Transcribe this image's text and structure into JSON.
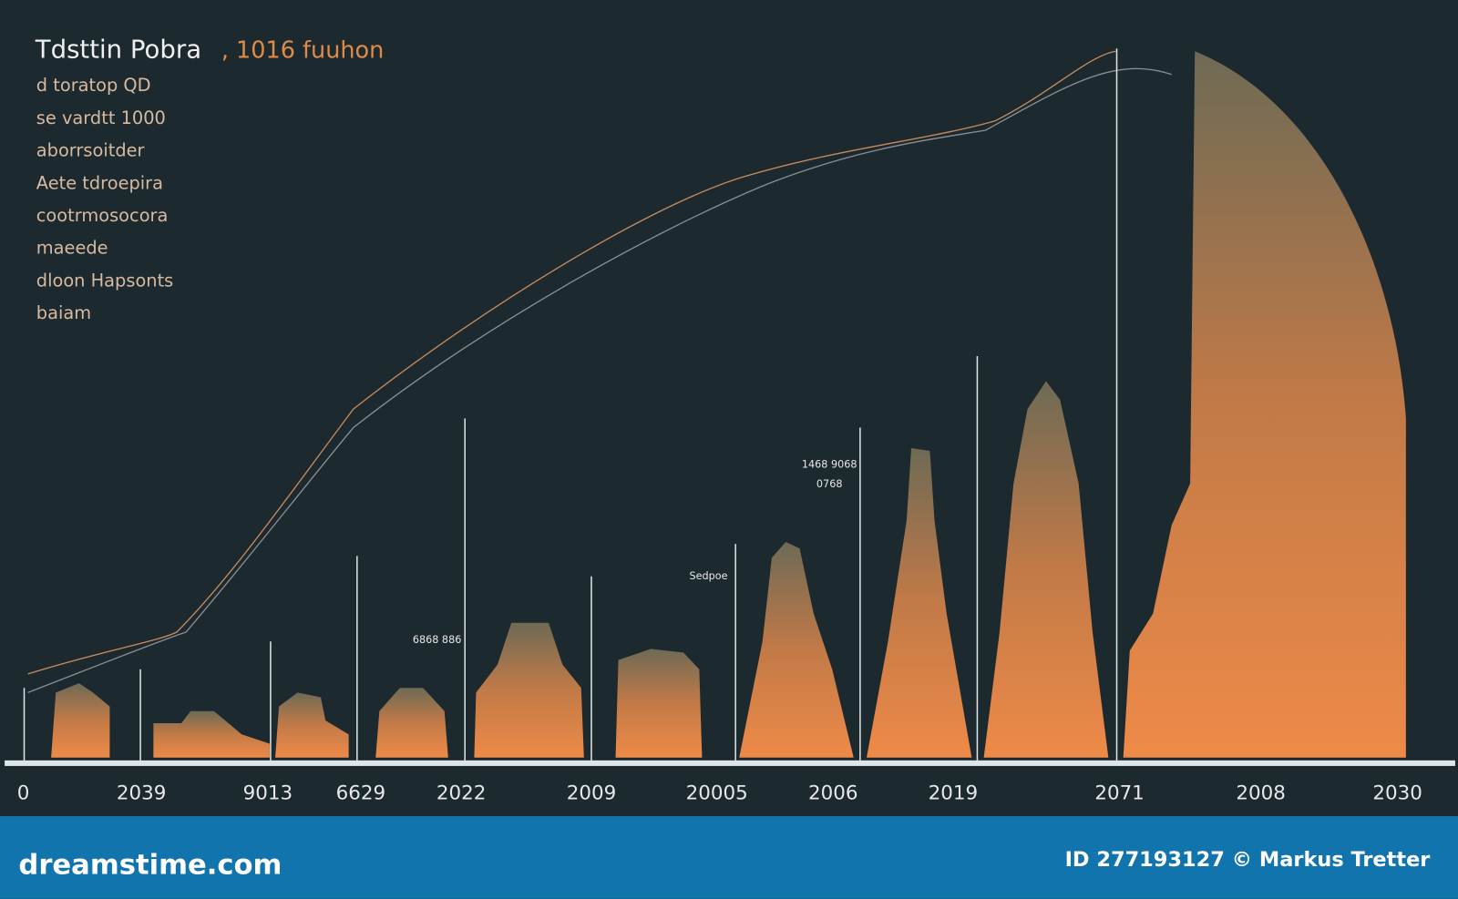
{
  "header": {
    "title": "Tdsttin Pobra",
    "subtitle": ", 1016 fuuhon"
  },
  "side_list": [
    "d toratop QD",
    "se vardtt 1000",
    "aborrsoitder",
    "Aete tdroepira",
    "cootrmosocora",
    "maeede",
    "dloon Hapsonts",
    "baiam"
  ],
  "annotations": [
    "6868 886",
    "1468 9068",
    "0768",
    "Sedpoe"
  ],
  "x_labels": [
    "0",
    "2039",
    "9013",
    "6629",
    "2022",
    "2009",
    "20005",
    "2006",
    "2019",
    "2071",
    "2008",
    "2030"
  ],
  "footer": {
    "brand": "dreamstime.com",
    "credit": "ID 277193127 © Markus Tretter"
  }
}
